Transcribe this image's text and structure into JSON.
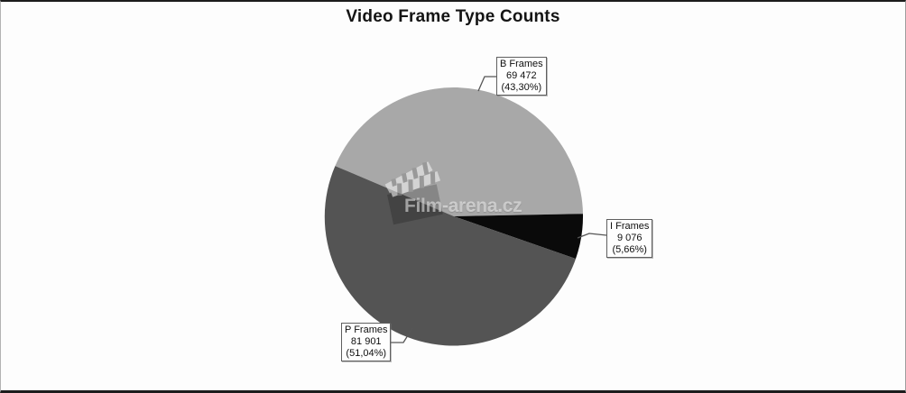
{
  "chart_data": {
    "type": "pie",
    "title": "Video Frame Type Counts",
    "legend_position": "none",
    "label_style": "callout-boxes",
    "start_angle_deg": 157,
    "direction": "clockwise",
    "slices": [
      {
        "label": "B Frames",
        "value": 69472,
        "value_display": "69 472",
        "percent": 43.3,
        "percent_display": "(43,30%)",
        "color": "#a8a8a8"
      },
      {
        "label": "I Frames",
        "value": 9076,
        "value_display": "9 076",
        "percent": 5.66,
        "percent_display": "(5,66%)",
        "color": "#0a0a0a"
      },
      {
        "label": "P Frames",
        "value": 81901,
        "value_display": "81 901",
        "percent": 51.04,
        "percent_display": "(51,04%)",
        "color": "#545454"
      }
    ]
  },
  "watermark": {
    "text": "Film-arena.cz",
    "icon": "clapperboard-icon"
  }
}
